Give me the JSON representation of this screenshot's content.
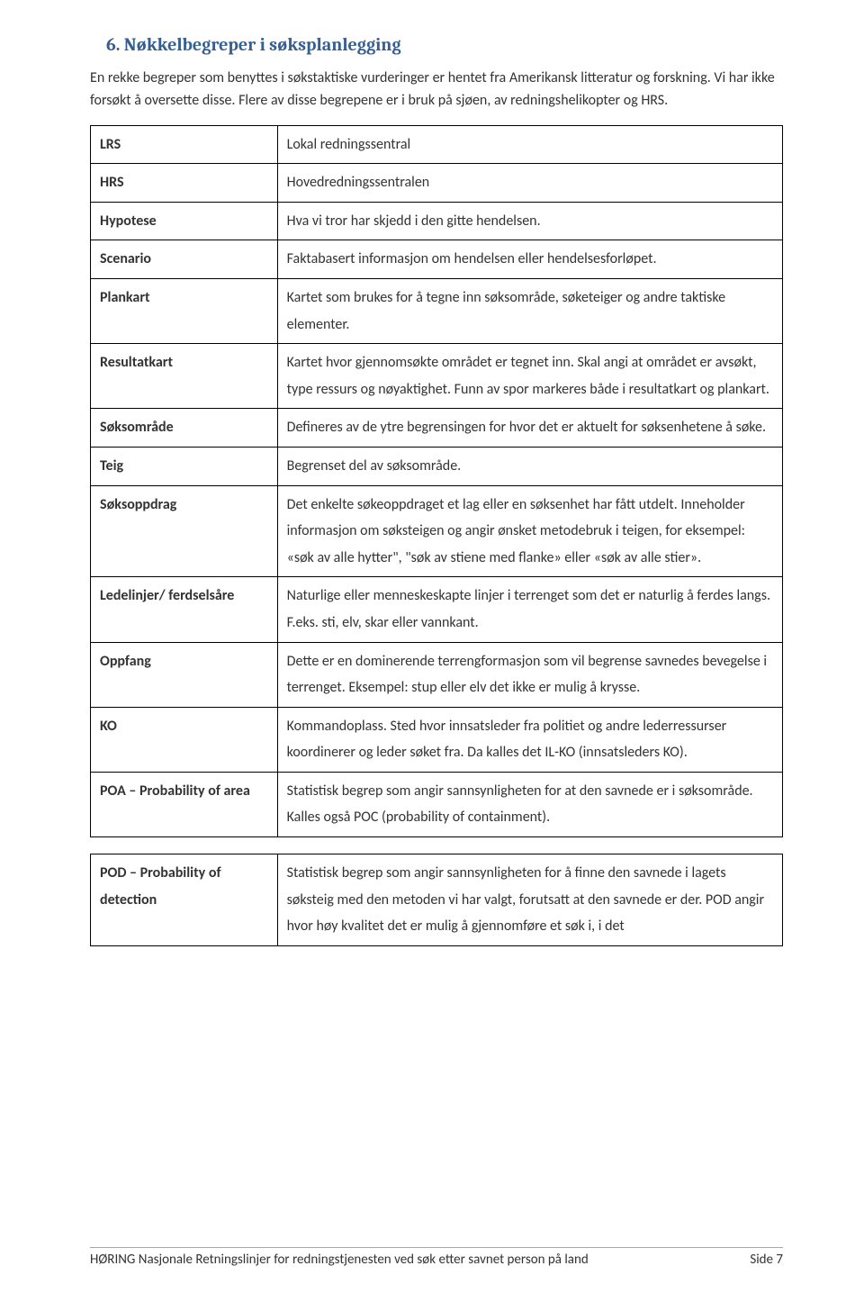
{
  "heading": "6.  Nøkkelbegreper i søksplanlegging",
  "intro": "En rekke begreper som benyttes i søkstaktiske vurderinger er hentet fra Amerikansk litteratur og forskning. Vi har ikke forsøkt å oversette disse. Flere av disse begrepene er i bruk på sjøen, av redningshelikopter og HRS.",
  "rows": [
    {
      "term": "LRS",
      "def": "Lokal redningssentral"
    },
    {
      "term": "HRS",
      "def": "Hovedredningssentralen"
    },
    {
      "term": "Hypotese",
      "def": "Hva vi tror har skjedd i den gitte hendelsen."
    },
    {
      "term": "Scenario",
      "def": "Faktabasert informasjon om hendelsen eller hendelsesforløpet."
    },
    {
      "term": "Plankart",
      "def": "Kartet som brukes for å tegne inn søksområde, søketeiger og andre taktiske elementer."
    },
    {
      "term": "Resultatkart",
      "def": "Kartet hvor gjennomsøkte området er tegnet inn. Skal angi at området er avsøkt, type ressurs og nøyaktighet. Funn av spor markeres både i resultatkart og plankart."
    },
    {
      "term": "Søksområde",
      "def": "Defineres av de ytre begrensingen for hvor det er aktuelt for søksenhetene å søke."
    },
    {
      "term": "Teig",
      "def": "Begrenset del av søksområde."
    },
    {
      "term": "Søksoppdrag",
      "def": "Det enkelte søkeoppdraget et lag eller en søksenhet har fått utdelt. Inneholder informasjon om søksteigen og angir ønsket metodebruk i teigen, for eksempel: «søk av alle hytter\", \"søk av stiene med flanke» eller «søk av alle stier»."
    },
    {
      "term": "Ledelinjer/ ferdselsåre",
      "def": "Naturlige eller menneskeskapte linjer i terrenget som det er naturlig å ferdes langs. F.eks. sti, elv, skar eller vannkant."
    },
    {
      "term": "Oppfang",
      "def": "Dette er en dominerende terrengformasjon som vil begrense savnedes bevegelse i terrenget. Eksempel: stup eller elv det ikke er mulig å krysse."
    },
    {
      "term": "KO",
      "def": "Kommandoplass. Sted hvor innsatsleder fra politiet og andre lederressurser koordinerer og leder søket fra. Da kalles det IL-KO (innsatsleders KO)."
    },
    {
      "term": "POA – Probability of area",
      "def": "Statistisk begrep som angir sannsynligheten for at den savnede er i søksområde. Kalles også POC (probability of containment)."
    }
  ],
  "rows2": [
    {
      "term": "POD – Probability of detection",
      "def": "Statistisk begrep som angir sannsynligheten for å finne den savnede i lagets søksteig med den metoden vi har valgt, forutsatt at den savnede er der. POD angir hvor høy kvalitet det er mulig å gjennomføre et søk i, i det"
    }
  ],
  "footer_left": "HØRING Nasjonale Retningslinjer for redningstjenesten ved søk etter savnet person på land",
  "footer_right": "Side 7"
}
